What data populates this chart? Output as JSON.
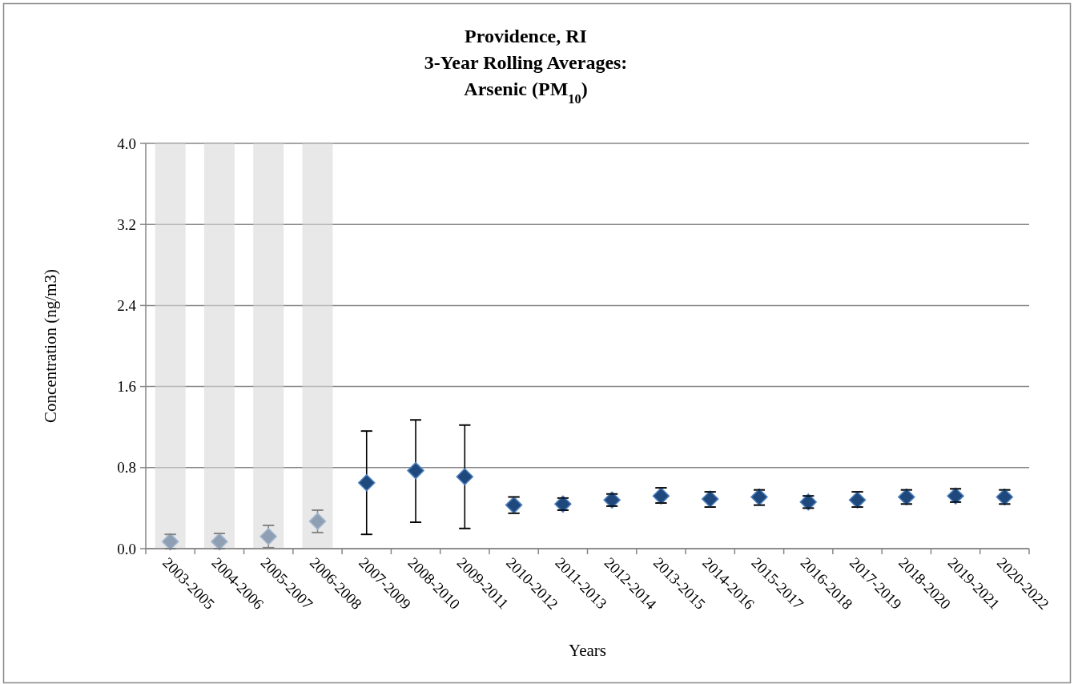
{
  "chart_data": {
    "type": "scatter",
    "title": "Providence, RI\n3-Year Rolling Averages:\nArsenic (PM$_{10}$)",
    "xlabel": "Years",
    "ylabel": "Concentration (ng/m3)",
    "categories": [
      "2003-2005",
      "2004-2006",
      "2005-2007",
      "2006-2008",
      "2007-2009",
      "2008-2010",
      "2009-2011",
      "2010-2012",
      "2011-2013",
      "2012-2014",
      "2013-2015",
      "2014-2016",
      "2015-2017",
      "2016-2018",
      "2017-2019",
      "2018-2020",
      "2019-2021",
      "2020-2022"
    ],
    "values": [
      0.07,
      0.07,
      0.12,
      0.27,
      0.65,
      0.77,
      0.71,
      0.43,
      0.44,
      0.48,
      0.52,
      0.49,
      0.51,
      0.46,
      0.48,
      0.51,
      0.52,
      0.51
    ],
    "errors": [
      [
        0,
        0.14
      ],
      [
        0,
        0.15
      ],
      [
        0.01,
        0.23
      ],
      [
        0.16,
        0.38
      ],
      [
        0.14,
        1.16
      ],
      [
        0.26,
        1.27
      ],
      [
        0.2,
        1.22
      ],
      [
        0.35,
        0.51
      ],
      [
        0.38,
        0.5
      ],
      [
        0.42,
        0.54
      ],
      [
        0.45,
        0.6
      ],
      [
        0.41,
        0.56
      ],
      [
        0.43,
        0.58
      ],
      [
        0.4,
        0.52
      ],
      [
        0.41,
        0.56
      ],
      [
        0.44,
        0.58
      ],
      [
        0.46,
        0.59
      ],
      [
        0.44,
        0.58
      ]
    ],
    "color": "#1f497d",
    "marker": "diamond",
    "grid": "y",
    "ylim": [
      0,
      4.0
    ],
    "yticks": [
      {
        "value": 0,
        "label": "0.0"
      },
      0.8,
      1.6,
      2.4,
      3.2,
      {
        "value": 4.0,
        "label": "4.0"
      }
    ],
    "bands": [
      {
        "axis": "x",
        "from": "2003-2005",
        "to": "2003-2005",
        "color": "#d9d9d9"
      },
      {
        "axis": "x",
        "from": "2004-2006",
        "to": "2004-2006",
        "color": "#d9d9d9"
      },
      {
        "axis": "x",
        "from": "2005-2007",
        "to": "2005-2007",
        "color": "#d9d9d9"
      },
      {
        "axis": "x",
        "from": "2006-2008",
        "to": "2006-2008",
        "color": "#d9d9d9"
      }
    ]
  }
}
